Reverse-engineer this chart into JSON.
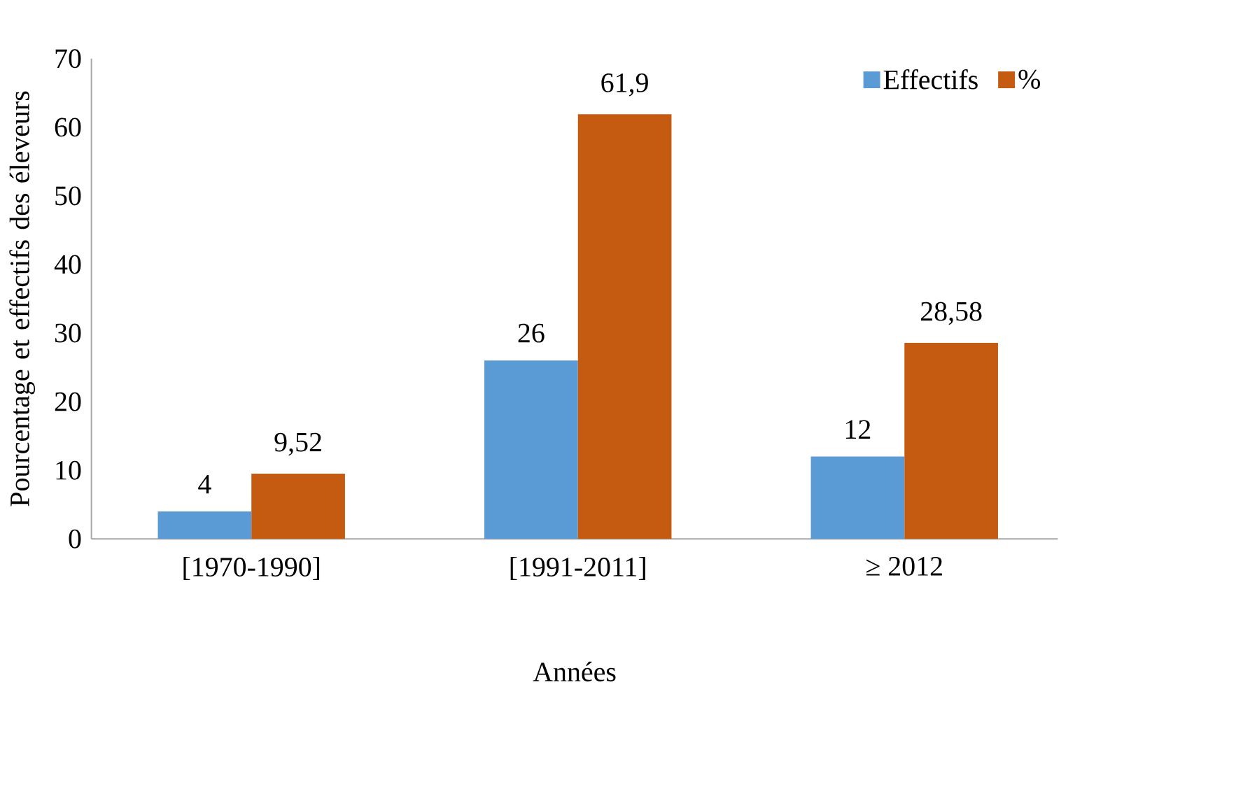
{
  "chart_data": {
    "type": "bar",
    "xlabel": "Années",
    "ylabel": "Pourcentage et effectifs des éleveurs",
    "categories": [
      "[1970-1990]",
      "[1991-2011]",
      "≥ 2012"
    ],
    "series": [
      {
        "name": "Effectifs",
        "color": "#5b9bd5",
        "values": [
          4,
          26,
          12
        ],
        "value_labels": [
          "4",
          "26",
          "12"
        ]
      },
      {
        "name": "%",
        "color": "#c55a11",
        "values": [
          9.52,
          61.9,
          28.58
        ],
        "value_labels": [
          "9,52",
          "61,9",
          "28,58"
        ]
      }
    ],
    "ylim": [
      0,
      70
    ],
    "yticks": [
      0,
      10,
      20,
      30,
      40,
      50,
      60,
      70
    ],
    "grid": false,
    "legend": "top right"
  }
}
